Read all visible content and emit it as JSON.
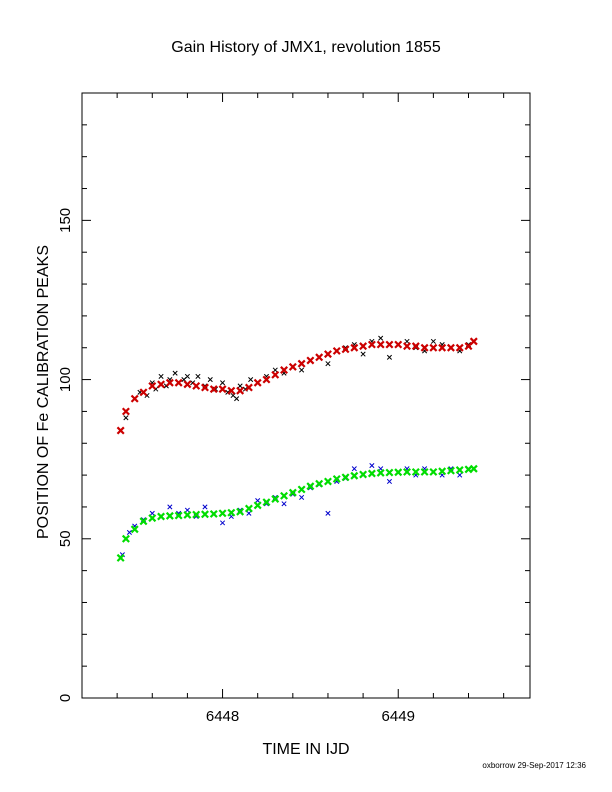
{
  "chart_data": {
    "type": "scatter",
    "title": "Gain History of JMX1, revolution 1855",
    "xlabel": "TIME IN IJD",
    "ylabel": "POSITION OF Fe CALIBRATION PEAKS",
    "xlim": [
      6447.2,
      6449.75
    ],
    "ylim": [
      0,
      190
    ],
    "xticks": [
      6448,
      6449
    ],
    "yticks": [
      0,
      50,
      100,
      150
    ],
    "grid": false,
    "legend": "none",
    "series": [
      {
        "marker": "x",
        "color": "#000000",
        "points": [
          [
            6447.45,
            88
          ],
          [
            6447.5,
            94
          ],
          [
            6447.53,
            96
          ],
          [
            6447.57,
            95
          ],
          [
            6447.6,
            99
          ],
          [
            6447.62,
            97
          ],
          [
            6447.65,
            101
          ],
          [
            6447.68,
            98
          ],
          [
            6447.7,
            100
          ],
          [
            6447.73,
            102
          ],
          [
            6447.75,
            99
          ],
          [
            6447.78,
            100
          ],
          [
            6447.8,
            101
          ],
          [
            6447.83,
            99
          ],
          [
            6447.86,
            101
          ],
          [
            6447.9,
            98
          ],
          [
            6447.93,
            100
          ],
          [
            6447.96,
            97
          ],
          [
            6448.0,
            99
          ],
          [
            6448.03,
            96
          ],
          [
            6448.06,
            95
          ],
          [
            6448.08,
            94
          ],
          [
            6448.1,
            98
          ],
          [
            6448.13,
            97
          ],
          [
            6448.16,
            100
          ],
          [
            6448.2,
            99
          ],
          [
            6448.25,
            101
          ],
          [
            6448.3,
            103
          ],
          [
            6448.35,
            102
          ],
          [
            6448.4,
            104
          ],
          [
            6448.45,
            103
          ],
          [
            6448.5,
            106
          ],
          [
            6448.55,
            107
          ],
          [
            6448.6,
            105
          ],
          [
            6448.65,
            109
          ],
          [
            6448.7,
            110
          ],
          [
            6448.75,
            111
          ],
          [
            6448.8,
            108
          ],
          [
            6448.85,
            112
          ],
          [
            6448.9,
            113
          ],
          [
            6448.95,
            107
          ],
          [
            6449.0,
            111
          ],
          [
            6449.05,
            112
          ],
          [
            6449.1,
            110
          ],
          [
            6449.15,
            109
          ],
          [
            6449.2,
            112
          ],
          [
            6449.25,
            111
          ],
          [
            6449.3,
            110
          ],
          [
            6449.35,
            109
          ],
          [
            6449.4,
            111
          ]
        ]
      },
      {
        "marker": "x",
        "color": "#cc0000",
        "points": [
          [
            6447.42,
            84
          ],
          [
            6447.45,
            90
          ],
          [
            6447.5,
            94
          ],
          [
            6447.55,
            96
          ],
          [
            6447.6,
            98
          ],
          [
            6447.65,
            98.5
          ],
          [
            6447.7,
            99
          ],
          [
            6447.75,
            99
          ],
          [
            6447.8,
            98.5
          ],
          [
            6447.85,
            98
          ],
          [
            6447.9,
            97.5
          ],
          [
            6447.95,
            97
          ],
          [
            6448.0,
            97
          ],
          [
            6448.05,
            96.5
          ],
          [
            6448.1,
            96.5
          ],
          [
            6448.15,
            97.5
          ],
          [
            6448.2,
            99
          ],
          [
            6448.25,
            100
          ],
          [
            6448.3,
            101.5
          ],
          [
            6448.35,
            103
          ],
          [
            6448.4,
            104
          ],
          [
            6448.45,
            105
          ],
          [
            6448.5,
            106
          ],
          [
            6448.55,
            107
          ],
          [
            6448.6,
            108
          ],
          [
            6448.65,
            109
          ],
          [
            6448.7,
            109.5
          ],
          [
            6448.75,
            110
          ],
          [
            6448.8,
            110.5
          ],
          [
            6448.85,
            111
          ],
          [
            6448.9,
            111
          ],
          [
            6448.95,
            111
          ],
          [
            6449.0,
            111
          ],
          [
            6449.05,
            110.5
          ],
          [
            6449.1,
            110.5
          ],
          [
            6449.15,
            110
          ],
          [
            6449.2,
            110
          ],
          [
            6449.25,
            110
          ],
          [
            6449.3,
            110
          ],
          [
            6449.35,
            110
          ],
          [
            6449.4,
            110.5
          ],
          [
            6449.43,
            112
          ]
        ]
      },
      {
        "marker": "x",
        "color": "#0000cc",
        "points": [
          [
            6447.43,
            45
          ],
          [
            6447.47,
            52
          ],
          [
            6447.5,
            54
          ],
          [
            6447.55,
            56
          ],
          [
            6447.6,
            58
          ],
          [
            6447.65,
            57
          ],
          [
            6447.7,
            60
          ],
          [
            6447.75,
            58
          ],
          [
            6447.8,
            59
          ],
          [
            6447.85,
            57
          ],
          [
            6447.9,
            60
          ],
          [
            6447.95,
            58
          ],
          [
            6448.0,
            55
          ],
          [
            6448.05,
            57
          ],
          [
            6448.1,
            59
          ],
          [
            6448.15,
            58
          ],
          [
            6448.2,
            62
          ],
          [
            6448.25,
            61
          ],
          [
            6448.3,
            63
          ],
          [
            6448.35,
            61
          ],
          [
            6448.4,
            64
          ],
          [
            6448.45,
            63
          ],
          [
            6448.5,
            66
          ],
          [
            6448.55,
            67
          ],
          [
            6448.6,
            58
          ],
          [
            6448.65,
            68
          ],
          [
            6448.7,
            69
          ],
          [
            6448.75,
            72
          ],
          [
            6448.8,
            70
          ],
          [
            6448.85,
            73
          ],
          [
            6448.9,
            72
          ],
          [
            6448.95,
            68
          ],
          [
            6449.0,
            71
          ],
          [
            6449.05,
            72
          ],
          [
            6449.1,
            70
          ],
          [
            6449.15,
            72
          ],
          [
            6449.2,
            71
          ],
          [
            6449.25,
            70
          ],
          [
            6449.3,
            72
          ],
          [
            6449.35,
            70
          ],
          [
            6449.4,
            72
          ]
        ]
      },
      {
        "marker": "x",
        "color": "#00dd00",
        "points": [
          [
            6447.42,
            44
          ],
          [
            6447.45,
            50
          ],
          [
            6447.5,
            53
          ],
          [
            6447.55,
            55.5
          ],
          [
            6447.6,
            56.5
          ],
          [
            6447.65,
            57
          ],
          [
            6447.7,
            57.2
          ],
          [
            6447.75,
            57.3
          ],
          [
            6447.8,
            57.5
          ],
          [
            6447.85,
            57.6
          ],
          [
            6447.9,
            57.7
          ],
          [
            6447.95,
            57.8
          ],
          [
            6448.0,
            58
          ],
          [
            6448.05,
            58.2
          ],
          [
            6448.1,
            58.5
          ],
          [
            6448.15,
            59.5
          ],
          [
            6448.2,
            60.5
          ],
          [
            6448.25,
            61.5
          ],
          [
            6448.3,
            62.5
          ],
          [
            6448.35,
            63.5
          ],
          [
            6448.4,
            64.5
          ],
          [
            6448.45,
            65.5
          ],
          [
            6448.5,
            66.5
          ],
          [
            6448.55,
            67.3
          ],
          [
            6448.6,
            68
          ],
          [
            6448.65,
            68.8
          ],
          [
            6448.7,
            69.3
          ],
          [
            6448.75,
            69.8
          ],
          [
            6448.8,
            70.2
          ],
          [
            6448.85,
            70.5
          ],
          [
            6448.9,
            70.7
          ],
          [
            6448.95,
            70.8
          ],
          [
            6449.0,
            70.9
          ],
          [
            6449.05,
            71
          ],
          [
            6449.1,
            71
          ],
          [
            6449.15,
            71
          ],
          [
            6449.2,
            71
          ],
          [
            6449.25,
            71.2
          ],
          [
            6449.3,
            71.4
          ],
          [
            6449.35,
            71.6
          ],
          [
            6449.4,
            71.8
          ],
          [
            6449.43,
            72
          ]
        ]
      }
    ]
  },
  "credit": "oxborrow 29-Sep-2017 12:36"
}
